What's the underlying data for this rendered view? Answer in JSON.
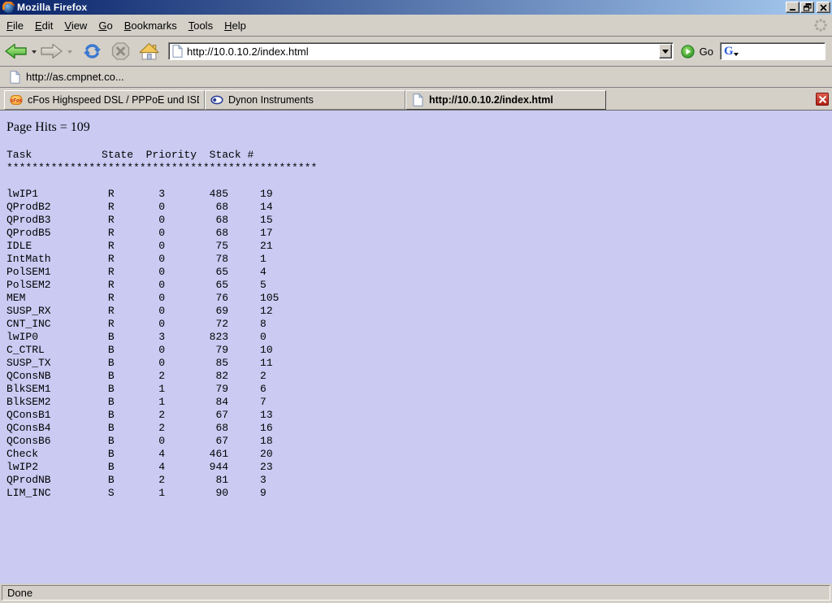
{
  "window": {
    "title": "Mozilla Firefox"
  },
  "menu_bar": {
    "items": [
      {
        "label": "File"
      },
      {
        "label": "Edit"
      },
      {
        "label": "View"
      },
      {
        "label": "Go"
      },
      {
        "label": "Bookmarks"
      },
      {
        "label": "Tools"
      },
      {
        "label": "Help"
      }
    ]
  },
  "toolbar": {
    "url_value": "http://10.0.10.2/index.html",
    "go_label": "Go",
    "search_value": ""
  },
  "bookmarks_bar": {
    "items": [
      {
        "label": "http://as.cmpnet.co..."
      }
    ]
  },
  "tab_bar": {
    "tabs": [
      {
        "label": "cFos Highspeed DSL / PPPoE und ISDN CAP...",
        "favicon": "cfos-icon",
        "active": false
      },
      {
        "label": "Dynon Instruments",
        "favicon": "dynon-icon",
        "active": false
      },
      {
        "label": "http://10.0.10.2/index.html",
        "favicon": "page-icon",
        "active": true
      }
    ]
  },
  "page": {
    "hits_text": "Page Hits = 109",
    "table": {
      "columns": [
        "Task",
        "State",
        "Priority",
        "Stack",
        "#"
      ],
      "separator": {
        "char": "*",
        "count": 49
      },
      "rows": [
        [
          "lwIP1",
          "R",
          "3",
          "485",
          "19"
        ],
        [
          "QProdB2",
          "R",
          "0",
          "68",
          "14"
        ],
        [
          "QProdB3",
          "R",
          "0",
          "68",
          "15"
        ],
        [
          "QProdB5",
          "R",
          "0",
          "68",
          "17"
        ],
        [
          "IDLE",
          "R",
          "0",
          "75",
          "21"
        ],
        [
          "IntMath",
          "R",
          "0",
          "78",
          "1"
        ],
        [
          "PolSEM1",
          "R",
          "0",
          "65",
          "4"
        ],
        [
          "PolSEM2",
          "R",
          "0",
          "65",
          "5"
        ],
        [
          "MEM",
          "R",
          "0",
          "76",
          "105"
        ],
        [
          "SUSP_RX",
          "R",
          "0",
          "69",
          "12"
        ],
        [
          "CNT_INC",
          "R",
          "0",
          "72",
          "8"
        ],
        [
          "lwIP0",
          "B",
          "3",
          "823",
          "0"
        ],
        [
          "C_CTRL",
          "B",
          "0",
          "79",
          "10"
        ],
        [
          "SUSP_TX",
          "B",
          "0",
          "85",
          "11"
        ],
        [
          "QConsNB",
          "B",
          "2",
          "82",
          "2"
        ],
        [
          "BlkSEM1",
          "B",
          "1",
          "79",
          "6"
        ],
        [
          "BlkSEM2",
          "B",
          "1",
          "84",
          "7"
        ],
        [
          "QConsB1",
          "B",
          "2",
          "67",
          "13"
        ],
        [
          "QConsB4",
          "B",
          "2",
          "68",
          "16"
        ],
        [
          "QConsB6",
          "B",
          "0",
          "67",
          "18"
        ],
        [
          "Check",
          "B",
          "4",
          "461",
          "20"
        ],
        [
          "lwIP2",
          "B",
          "4",
          "944",
          "23"
        ],
        [
          "QProdNB",
          "B",
          "2",
          "81",
          "3"
        ],
        [
          "LIM_INC",
          "S",
          "1",
          "90",
          "9"
        ]
      ]
    }
  },
  "status_bar": {
    "text": "Done"
  },
  "colors": {
    "content_bg": "#cacaf3",
    "chrome": "#d4d0c8",
    "title_from": "#0a246a",
    "title_to": "#a6caf0",
    "go_green": "#3fae31",
    "close_red": "#b01f14"
  }
}
